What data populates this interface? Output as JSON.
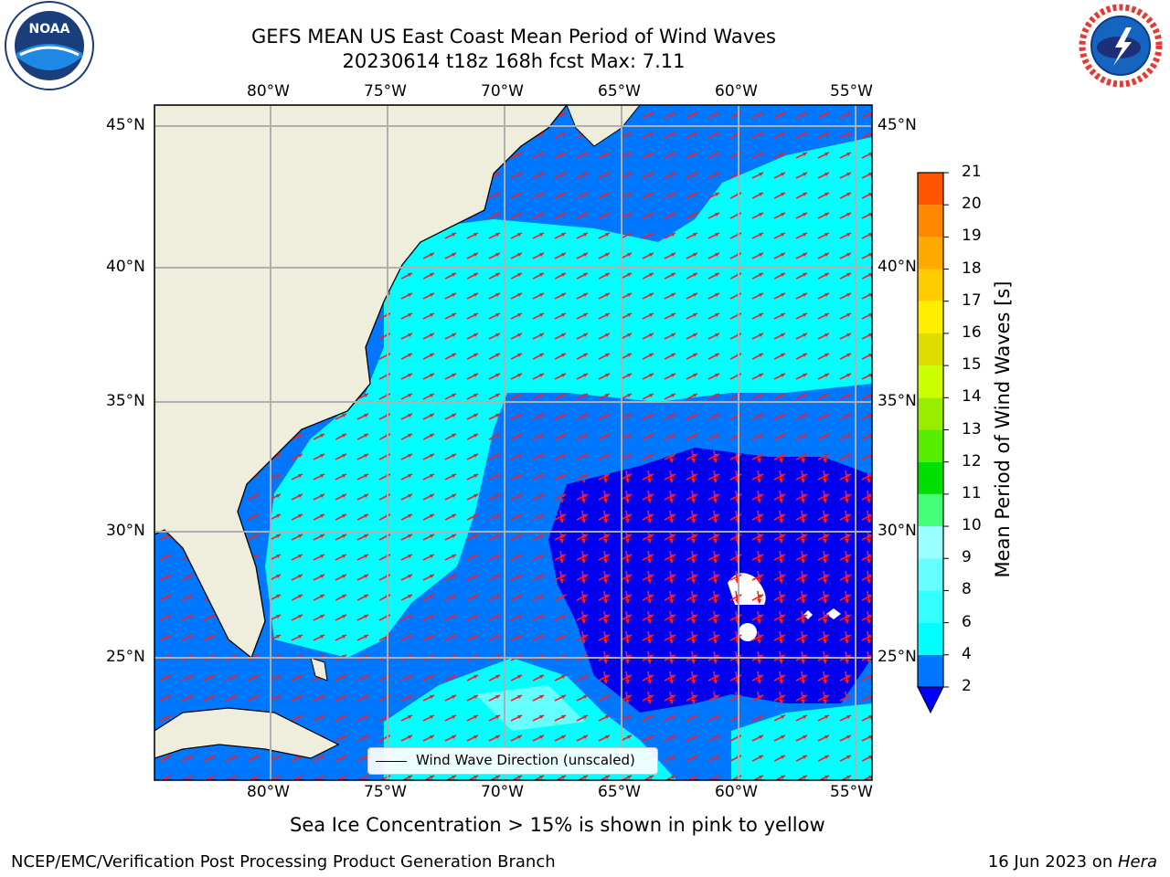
{
  "title": "GEFS MEAN US East Coast Mean Period of Wind Waves",
  "subtitle": "20230614 t18z 168h fcst   Max: 7.11",
  "logos": {
    "left": "NOAA",
    "right": "NATIONAL WEATHER SERVICE"
  },
  "axes": {
    "lon_ticks": [
      "80°W",
      "75°W",
      "70°W",
      "65°W",
      "60°W",
      "55°W"
    ],
    "lat_ticks": [
      "45°N",
      "40°N",
      "35°N",
      "30°N",
      "25°N"
    ]
  },
  "legend": {
    "label": "Wind Wave Direction (unscaled)"
  },
  "colorbar": {
    "label": "Mean Period of Wind Waves [s]",
    "ticks": [
      "2",
      "4",
      "6",
      "8",
      "9",
      "10",
      "11",
      "12",
      "13",
      "14",
      "15",
      "16",
      "17",
      "18",
      "19",
      "20",
      "21"
    ],
    "colors": [
      "#0077ff",
      "#00ffff",
      "#33ffff",
      "#66ffff",
      "#99ffff",
      "#44ff77",
      "#00dd00",
      "#55ee00",
      "#99ee00",
      "#ccff00",
      "#dddd00",
      "#ffee00",
      "#ffcc00",
      "#ffaa00",
      "#ff8800",
      "#ff5500",
      "#ff2200",
      "#ff0000"
    ],
    "under_color": "#0000ff"
  },
  "notes": {
    "ice": "Sea Ice Concentration > 15% is shown in pink to yellow",
    "credit": "NCEP/EMC/Verification Post Processing Product Generation Branch",
    "date": "16 Jun 2023 on ",
    "machine": "Hera"
  }
}
